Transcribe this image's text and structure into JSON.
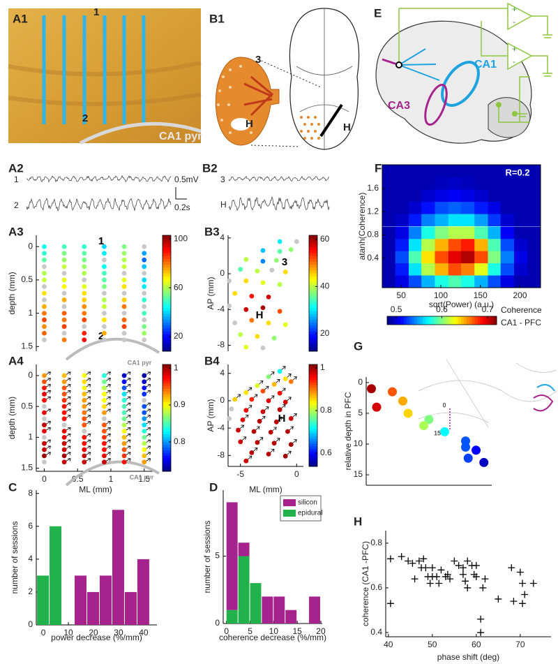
{
  "figure": {
    "A1": {
      "panel": "A1",
      "labels": [
        "1",
        "2",
        "CA1 pyr"
      ]
    },
    "B1": {
      "panel": "B1",
      "labels": [
        "3",
        "H",
        "H"
      ]
    },
    "E": {
      "panel": "E",
      "labels": [
        "CA1",
        "CA3"
      ],
      "amplifier_signs": [
        "+",
        "-",
        "+",
        "-"
      ]
    },
    "A2": {
      "panel": "A2",
      "channels": [
        "1",
        "2"
      ],
      "scale": [
        "0.5mV",
        "0.2s"
      ]
    },
    "B2": {
      "panel": "B2",
      "channels": [
        "3",
        "H"
      ]
    }
  },
  "chart_data": [
    {
      "type": "heatmap",
      "panel": "F",
      "xlabel": "sqrt(Power) (a.u.)",
      "ylabel": "atanh(Coherence)",
      "annotations": [
        "R=0.2"
      ],
      "x": [
        34,
        51,
        68,
        84,
        101,
        118,
        134,
        151,
        168,
        184,
        201,
        218
      ],
      "y": [
        0,
        0.21,
        0.42,
        0.63,
        0.84,
        1.06,
        1.27,
        1.48,
        1.69,
        1.9
      ],
      "z": [
        [
          0.05,
          0.1,
          0.2,
          0.3,
          0.4,
          0.45,
          0.4,
          0.3,
          0.2,
          0.1,
          0.05,
          0.05
        ],
        [
          0.05,
          0.15,
          0.35,
          0.55,
          0.7,
          0.8,
          0.75,
          0.6,
          0.4,
          0.2,
          0.08,
          0.05
        ],
        [
          0.05,
          0.2,
          0.45,
          0.65,
          0.8,
          0.9,
          0.95,
          0.8,
          0.5,
          0.25,
          0.1,
          0.05
        ],
        [
          0.05,
          0.15,
          0.35,
          0.55,
          0.7,
          0.8,
          0.85,
          0.7,
          0.45,
          0.2,
          0.08,
          0.05
        ],
        [
          0.05,
          0.1,
          0.25,
          0.4,
          0.5,
          0.55,
          0.55,
          0.45,
          0.3,
          0.12,
          0.05,
          0.05
        ],
        [
          0.05,
          0.07,
          0.15,
          0.25,
          0.3,
          0.35,
          0.35,
          0.28,
          0.18,
          0.08,
          0.05,
          0.05
        ],
        [
          0.05,
          0.05,
          0.08,
          0.14,
          0.2,
          0.22,
          0.2,
          0.15,
          0.1,
          0.05,
          0.05,
          0.05
        ],
        [
          0.05,
          0.05,
          0.05,
          0.08,
          0.1,
          0.12,
          0.1,
          0.08,
          0.05,
          0.05,
          0.05,
          0.05
        ],
        [
          0.05,
          0.05,
          0.05,
          0.05,
          0.06,
          0.07,
          0.06,
          0.05,
          0.05,
          0.05,
          0.05,
          0.05
        ],
        [
          0.05,
          0.05,
          0.05,
          0.05,
          0.05,
          0.05,
          0.05,
          0.05,
          0.05,
          0.05,
          0.05,
          0.05
        ]
      ],
      "zlim": [
        0,
        1
      ],
      "xlim": [
        26,
        226
      ],
      "ylim": [
        -0.11,
        2.01
      ],
      "xticks": [
        50,
        100,
        150,
        200
      ],
      "yticks": [
        0.4,
        0.8,
        1.2,
        1.6
      ],
      "frame": true
    },
    {
      "type": "dotgrid",
      "panel": "A3",
      "ylabel": "depth (mm)",
      "annotations": [
        "1",
        "2",
        "CA1 pyr"
      ],
      "ml": [
        0,
        0.3,
        0.6,
        0.9,
        1.2,
        1.5
      ],
      "depth": [
        0,
        0.1,
        0.2,
        0.3,
        0.4,
        0.5,
        0.6,
        0.7,
        0.8,
        0.9,
        1.0,
        1.1,
        1.2,
        1.3,
        1.4
      ],
      "values": [
        [
          45,
          48,
          52,
          null,
          60,
          62,
          null,
          70,
          null,
          75,
          80,
          85,
          78,
          82,
          null
        ],
        [
          50,
          55,
          58,
          62,
          null,
          65,
          68,
          null,
          75,
          null,
          82,
          80,
          85,
          null,
          80
        ],
        [
          48,
          52,
          55,
          58,
          60,
          null,
          65,
          70,
          72,
          78,
          80,
          85,
          null,
          88,
          90
        ],
        [
          40,
          42,
          null,
          45,
          50,
          52,
          55,
          null,
          60,
          62,
          null,
          70,
          null,
          75,
          null
        ],
        [
          55,
          58,
          60,
          62,
          null,
          65,
          70,
          null,
          72,
          80,
          null,
          82,
          85,
          null,
          null
        ],
        [
          null,
          35,
          30,
          38,
          null,
          40,
          42,
          null,
          48,
          null,
          50,
          null,
          55,
          58,
          null
        ]
      ],
      "null_color": "#c8c8c8",
      "xlim": [
        -0.12,
        1.66
      ],
      "ylim": [
        -0.17,
        1.57
      ],
      "y_inverted": true,
      "yticks": [
        0,
        0.5,
        1,
        1.5
      ],
      "colorbar": {
        "clim": [
          8,
          103
        ],
        "ticks": [
          20,
          60,
          100
        ],
        "orientation": "vertical"
      }
    },
    {
      "type": "dotmap",
      "panel": "B3",
      "ylabel": "AP (mm)",
      "annotations": [
        "3",
        "H"
      ],
      "x": [
        -1.5,
        0,
        -3,
        -1.5,
        -0.5,
        -4.5,
        -3,
        -1.8,
        -5,
        -3.5,
        -2.2,
        -1,
        -6,
        -4.5,
        -3,
        -1.5,
        -5.5,
        -4,
        -2.5,
        -6,
        -4.5,
        -3,
        -1.5,
        -5.5,
        -4,
        -2.5,
        -1,
        -5,
        -3.5,
        -2,
        -4.5,
        -3
      ],
      "y": [
        3.6,
        3.6,
        2.6,
        2.5,
        2.7,
        1.6,
        1.4,
        1.5,
        0.5,
        0.3,
        0.4,
        0.2,
        -0.8,
        -0.8,
        -1,
        -1.2,
        -2.2,
        -2.5,
        -2.6,
        -3.6,
        -4,
        -3.8,
        -4.2,
        -5.5,
        -5.2,
        -5.5,
        -5.7,
        -6.8,
        -7,
        -7.2,
        -8.2,
        -8.3
      ],
      "values": [
        30,
        null,
        28,
        35,
        38,
        40,
        25,
        38,
        35,
        40,
        null,
        45,
        null,
        45,
        42,
        40,
        45,
        55,
        58,
        null,
        58,
        60,
        52,
        null,
        50,
        45,
        42,
        40,
        45,
        38,
        42,
        null
      ],
      "null_color": "#c8c8c8",
      "xlim": [
        -6.1,
        0.6
      ],
      "ylim": [
        -8.66,
        4.3
      ],
      "yticks": [
        4,
        0,
        -4,
        -8
      ],
      "colorbar": {
        "clim": [
          12.5,
          61.8
        ],
        "ticks": [
          20,
          40,
          60
        ],
        "orientation": "vertical"
      }
    },
    {
      "type": "dotgrid",
      "panel": "A4",
      "ylabel": "depth (mm)",
      "xlabel": "ML (mm)",
      "annotations": [
        "CA1 pyr"
      ],
      "arrows": true,
      "ml": [
        0,
        0.3,
        0.6,
        0.9,
        1.2,
        1.5
      ],
      "depth": [
        0,
        0.1,
        0.2,
        0.3,
        0.4,
        0.5,
        0.6,
        0.7,
        0.8,
        0.9,
        1.0,
        1.1,
        1.2,
        1.3,
        1.4
      ],
      "values": [
        [
          0.93,
          0.95,
          0.97,
          0.98,
          0.97,
          null,
          0.98,
          null,
          0.99,
          0.98,
          null,
          0.99,
          0.99,
          1.0,
          null
        ],
        [
          0.92,
          0.93,
          0.95,
          0.95,
          0.96,
          0.97,
          0.97,
          0.97,
          null,
          0.98,
          0.98,
          0.99,
          0.99,
          1.0,
          0.99
        ],
        [
          0.9,
          0.91,
          0.9,
          0.92,
          0.93,
          0.93,
          0.94,
          0.95,
          0.95,
          null,
          0.97,
          0.97,
          0.98,
          0.99,
          0.99
        ],
        [
          0.84,
          0.86,
          0.88,
          0.9,
          0.9,
          0.91,
          0.93,
          null,
          0.95,
          0.95,
          0.96,
          0.97,
          0.97,
          0.98,
          0.99
        ],
        [
          0.74,
          0.76,
          0.78,
          0.82,
          0.84,
          0.85,
          0.85,
          0.86,
          0.88,
          0.9,
          0.92,
          0.93,
          0.95,
          0.96,
          0.97
        ],
        [
          0.73,
          0.74,
          0.76,
          0.77,
          null,
          0.78,
          0.78,
          0.8,
          0.82,
          0.84,
          0.86,
          0.88,
          0.9,
          0.92,
          0.93
        ]
      ],
      "null_color": "#c8c8c8",
      "xlim": [
        -0.12,
        1.66
      ],
      "ylim": [
        -0.18,
        1.55
      ],
      "y_inverted": true,
      "xticks": [
        0,
        0.5,
        1,
        1.5
      ],
      "yticks": [
        0,
        0.5,
        1,
        1.5
      ],
      "colorbar": {
        "clim": [
          0.72,
          1.01
        ],
        "ticks": [
          0.8,
          0.9,
          1
        ],
        "orientation": "vertical"
      }
    },
    {
      "type": "dotmap",
      "panel": "B4",
      "ylabel": "AP (mm)",
      "xlabel": "ML (mm)",
      "annotations": [
        "H"
      ],
      "arrows": true,
      "x": [
        -1.5,
        -2.5,
        -1,
        -3.5,
        -2,
        -0.5,
        -4.5,
        -3,
        -1.5,
        -5.5,
        -4,
        -2.5,
        -1,
        -5.8,
        -4.5,
        -3,
        -1.5,
        -6,
        -4.8,
        -3.3,
        -1.8,
        -0.5,
        -5.2,
        -3.8,
        -2.3,
        -0.8,
        -5,
        -3.5,
        -2,
        -0.5,
        -4,
        -2.5,
        -1,
        -4.5
      ],
      "y": [
        4.3,
        3.5,
        3.2,
        2.2,
        2.4,
        2.8,
        1.2,
        1.4,
        1.1,
        0.2,
        0.2,
        0,
        -0.2,
        -1.2,
        -1.4,
        -1.6,
        -1.3,
        -2.6,
        -2.8,
        -3,
        -3.1,
        -2.6,
        -4.3,
        -4.5,
        -4.6,
        -4.5,
        -6,
        -6.1,
        -6.2,
        -6.4,
        -7.6,
        -7.8,
        -8.1,
        -8.8
      ],
      "values": [
        0.72,
        0.78,
        0.85,
        0.82,
        0.87,
        0.9,
        0.85,
        0.92,
        0.95,
        0.86,
        0.94,
        0.97,
        0.98,
        null,
        0.96,
        0.98,
        0.99,
        null,
        0.97,
        0.99,
        0.99,
        0.98,
        0.98,
        0.99,
        0.99,
        0.99,
        0.98,
        0.99,
        0.99,
        1.0,
        0.99,
        0.99,
        1.0,
        0.98
      ],
      "null_color": "#c8c8c8",
      "xlim": [
        -6.1,
        0.6
      ],
      "ylim": [
        -9.6,
        5.3
      ],
      "xticks": [
        -5,
        0
      ],
      "yticks": [
        4,
        0,
        -4,
        -8
      ],
      "colorbar": {
        "clim": [
          0.538,
          1.016
        ],
        "ticks": [
          0.6,
          0.8,
          1
        ],
        "orientation": "vertical"
      }
    },
    {
      "type": "histogram",
      "panel": "C",
      "xlabel": "power decrease (%/mm)",
      "ylabel": "number of sessions",
      "bins": [
        -2.5,
        2.5,
        7.5,
        12.5,
        17.5,
        22.5,
        27.5,
        32.5,
        37.5,
        42.5
      ],
      "series": [
        {
          "name": "silicon",
          "color": "#a6228c",
          "values": [
            0,
            0,
            0,
            3,
            2,
            3,
            7,
            2,
            4
          ]
        },
        {
          "name": "epidural",
          "color": "#22b24c",
          "values": [
            3,
            6,
            0,
            0,
            0,
            0,
            0,
            0,
            0
          ]
        }
      ],
      "xlim": [
        -2.8,
        45.3
      ],
      "ylim": [
        0,
        8.2
      ],
      "xticks": [
        0,
        10,
        20,
        30,
        40
      ],
      "yticks": [
        0,
        2,
        4,
        6,
        8
      ]
    },
    {
      "type": "histogram",
      "panel": "D",
      "xlabel": "coherence decrease (%/mm)",
      "ylabel": "number of sessions",
      "stacked": true,
      "bins": [
        0,
        2.5,
        5,
        7.5,
        10,
        12.5,
        15,
        17.5,
        20
      ],
      "series": [
        {
          "name": "epidural",
          "color": "#22b24c",
          "values": [
            1,
            5,
            3,
            0,
            0,
            0,
            0,
            0
          ]
        },
        {
          "name": "silicon",
          "color": "#a6228c",
          "values": [
            8,
            1,
            0,
            2,
            2,
            1,
            0,
            2
          ]
        }
      ],
      "legend": "top-right",
      "xlim": [
        -0.7,
        20.3
      ],
      "ylim": [
        0,
        9.9
      ],
      "xticks": [
        0,
        5,
        10,
        15,
        20
      ],
      "yticks": [
        0,
        5
      ]
    },
    {
      "type": "colorscatter",
      "panel": "G",
      "ylabel": "relative depth in PFC",
      "annotations": [
        "0",
        "15"
      ],
      "values": [
        1,
        4,
        1.5,
        3,
        5,
        6,
        7,
        8,
        9.5,
        10.5,
        12.3,
        11,
        13
      ],
      "color_values": [
        0.71,
        0.7,
        0.67,
        0.65,
        0.64,
        0.6,
        0.61,
        0.57,
        0.53,
        0.53,
        0.525,
        0.51,
        0.495
      ],
      "ylim": [
        -0.9,
        16.7
      ],
      "y_inverted": true,
      "yticks": [
        0,
        5,
        10,
        15
      ],
      "colorbar": {
        "clim": [
          0.48,
          0.72
        ],
        "ticks": [
          0.5,
          0.6,
          0.7
        ],
        "orientation": "horizontal",
        "label": [
          "Coherence",
          "CA1 - PFC"
        ]
      }
    },
    {
      "type": "scatter",
      "panel": "H",
      "xlabel": "phase shift (deg)",
      "ylabel": "coherence (CA1 -PFC)",
      "color": "#000000",
      "x": [
        40.5,
        40.5,
        43,
        44.5,
        45.5,
        46,
        47,
        47.5,
        48,
        48.5,
        49,
        49.5,
        50,
        50,
        51,
        51.5,
        52,
        53,
        53.5,
        54,
        55,
        56,
        57,
        57,
        57.5,
        58,
        58,
        59,
        59.5,
        60,
        60,
        61,
        61,
        61.5,
        62,
        65,
        68,
        68.5,
        70,
        70.5,
        71,
        70.5,
        73
      ],
      "y": [
        0.73,
        0.53,
        0.74,
        0.72,
        0.71,
        0.64,
        0.72,
        0.69,
        0.73,
        0.69,
        0.65,
        0.62,
        0.69,
        0.65,
        0.65,
        0.62,
        0.68,
        0.65,
        0.66,
        0.64,
        0.72,
        0.7,
        0.69,
        0.66,
        0.63,
        0.6,
        0.72,
        0.7,
        0.66,
        0.7,
        0.65,
        0.46,
        0.4,
        0.6,
        0.64,
        0.55,
        0.69,
        0.54,
        0.67,
        0.62,
        0.57,
        0.53,
        0.62
      ],
      "xlim": [
        39.4,
        77
      ],
      "ylim": [
        0.381,
        0.856
      ],
      "xticks": [
        40,
        50,
        60,
        70
      ],
      "yticks": [
        0.4,
        0.6,
        0.8
      ]
    }
  ]
}
